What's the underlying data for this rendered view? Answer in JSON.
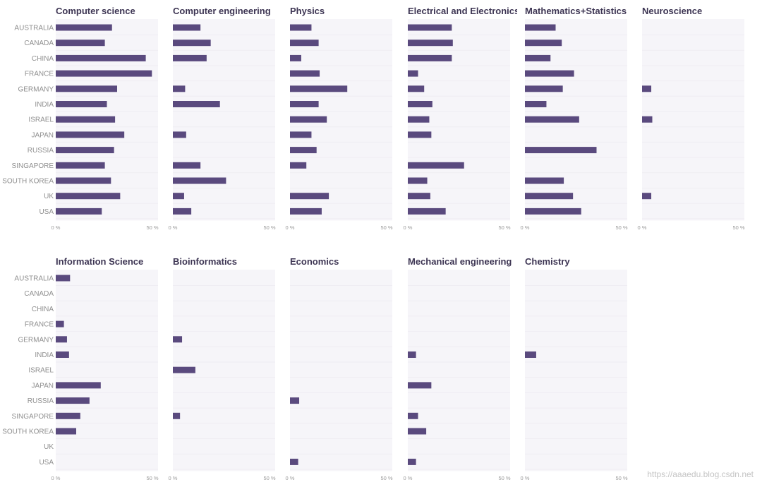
{
  "chart_data": {
    "type": "bar",
    "orientation": "horizontal",
    "xlim": [
      0,
      50
    ],
    "ticks": [
      {
        "value": 0,
        "label": "0 %"
      },
      {
        "value": 50,
        "label": "50 %"
      }
    ],
    "categories": [
      "AUSTRALIA",
      "CANADA",
      "CHINA",
      "FRANCE",
      "GERMANY",
      "INDIA",
      "ISRAEL",
      "JAPAN",
      "RUSSIA",
      "SINGAPORE",
      "SOUTH KOREA",
      "UK",
      "USA"
    ],
    "bar_color": "#5a4a7e",
    "panel_bg": "#f6f5f9",
    "panels": [
      {
        "title": "Computer science",
        "values": [
          27.5,
          24,
          44,
          47,
          30,
          25,
          29,
          33.5,
          28.5,
          24,
          27,
          31.5,
          22.5
        ]
      },
      {
        "title": "Computer engineering",
        "values": [
          13.5,
          18.5,
          16.5,
          0,
          6,
          23,
          0,
          6.5,
          0,
          13.5,
          26,
          5.5,
          9
        ]
      },
      {
        "title": "Physics",
        "values": [
          10.5,
          14,
          5.5,
          14.5,
          28,
          14,
          18,
          10.5,
          13,
          8,
          0,
          19,
          15.5
        ]
      },
      {
        "title": "Electrical and Electronics",
        "values": [
          21.5,
          22,
          21.5,
          5,
          8,
          12,
          10.5,
          11.5,
          0,
          27.5,
          9.5,
          11,
          18.5
        ]
      },
      {
        "title": "Mathematics+Statistics",
        "values": [
          15,
          18,
          12.5,
          24,
          18.5,
          10.5,
          26.5,
          0,
          35,
          0,
          19,
          23.5,
          27.5
        ]
      },
      {
        "title": "Neuroscience",
        "values": [
          0,
          0,
          0,
          0,
          4.5,
          0,
          5,
          0,
          0,
          0,
          0,
          4.5,
          0
        ]
      },
      {
        "title": "Information Science",
        "values": [
          7,
          0,
          0,
          4,
          5.5,
          6.5,
          0,
          22,
          16.5,
          12,
          10,
          0,
          0
        ]
      },
      {
        "title": "Bioinformatics",
        "values": [
          0,
          0,
          0,
          0,
          4.5,
          0,
          11,
          0,
          0,
          3.5,
          0,
          0,
          0
        ]
      },
      {
        "title": "Economics",
        "values": [
          0,
          0,
          0,
          0,
          0,
          0,
          0,
          0,
          4.5,
          0,
          0,
          0,
          4
        ]
      },
      {
        "title": "Mechanical engineering",
        "values": [
          0,
          0,
          0,
          0,
          0,
          4,
          0,
          11.5,
          0,
          5,
          9,
          0,
          4
        ]
      },
      {
        "title": "Chemistry",
        "values": [
          0,
          0,
          0,
          0,
          0,
          5.5,
          0,
          0,
          0,
          0,
          0,
          0,
          0
        ]
      }
    ]
  },
  "watermark": "https://aaaedu.blog.csdn.net"
}
